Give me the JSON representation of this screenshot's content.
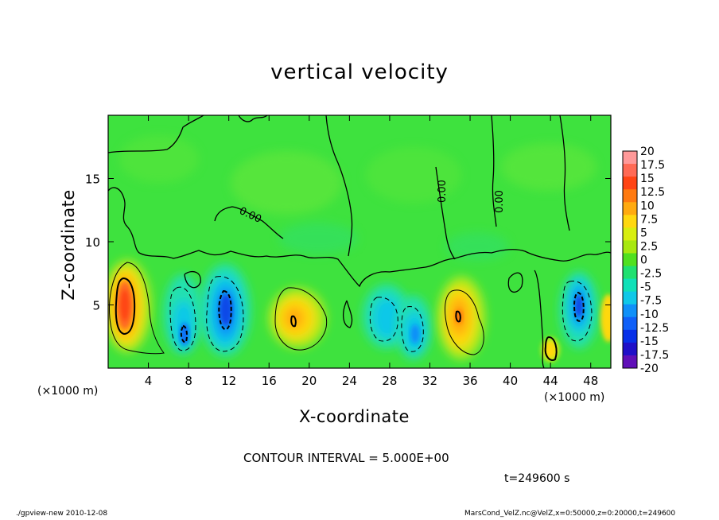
{
  "chart_data": {
    "type": "heatmap",
    "title": "vertical velocity",
    "xlabel": "X-coordinate",
    "ylabel": "Z-coordinate",
    "x_unit_label": "(×1000 m)",
    "xlim": [
      0,
      50
    ],
    "ylim": [
      0,
      20
    ],
    "x_ticks": [
      4,
      8,
      12,
      16,
      20,
      24,
      28,
      32,
      36,
      40,
      44,
      48
    ],
    "y_ticks": [
      5,
      10,
      15
    ],
    "contour_interval_text": "CONTOUR INTERVAL = 5.000E+00",
    "zero_contour_label": "0.00",
    "colorbar": {
      "labels": [
        "20",
        "17.5",
        "15",
        "12.5",
        "10",
        "7.5",
        "5",
        "2.5",
        "0",
        "-2.5",
        "-5",
        "-7.5",
        "-10",
        "-12.5",
        "-15",
        "-17.5",
        "-20"
      ],
      "colors": [
        "#ff9999",
        "#ff6a55",
        "#ff4414",
        "#ff7a10",
        "#ffaa10",
        "#ffd810",
        "#d8ee10",
        "#a8e810",
        "#50e020",
        "#20e070",
        "#10e0b8",
        "#10c8e8",
        "#1090f8",
        "#1060f8",
        "#0830e8",
        "#2010c8",
        "#6010b8"
      ]
    },
    "features": [
      {
        "kind": "updraft",
        "x": 1.7,
        "z": 4.9,
        "peak": 12.5
      },
      {
        "kind": "downdraft",
        "x": 7.8,
        "z": 2.6,
        "peak": -10
      },
      {
        "kind": "downdraft",
        "x": 11.9,
        "z": 4.3,
        "peak": -12.5
      },
      {
        "kind": "updraft",
        "x": 18.6,
        "z": 3.8,
        "peak": 7.5
      },
      {
        "kind": "downdraft",
        "x": 27.7,
        "z": 4.6,
        "peak": -7.5
      },
      {
        "kind": "downdraft",
        "x": 30.5,
        "z": 2.8,
        "peak": -7.5
      },
      {
        "kind": "updraft",
        "x": 34.6,
        "z": 4.0,
        "peak": 10
      },
      {
        "kind": "updraft",
        "x": 44.6,
        "z": 1.6,
        "peak": 10
      },
      {
        "kind": "downdraft",
        "x": 47.2,
        "z": 4.8,
        "peak": -12.5
      }
    ]
  },
  "annotations": {
    "time_label": "t=249600 s",
    "footer_left": "./gpview-new   2010-12-08",
    "footer_right": "MarsCond_VelZ.nc@VelZ,x=0:50000,z=0:20000,t=249600"
  },
  "colors": {
    "background_field": "#3ee23e",
    "frame": "#000000"
  }
}
